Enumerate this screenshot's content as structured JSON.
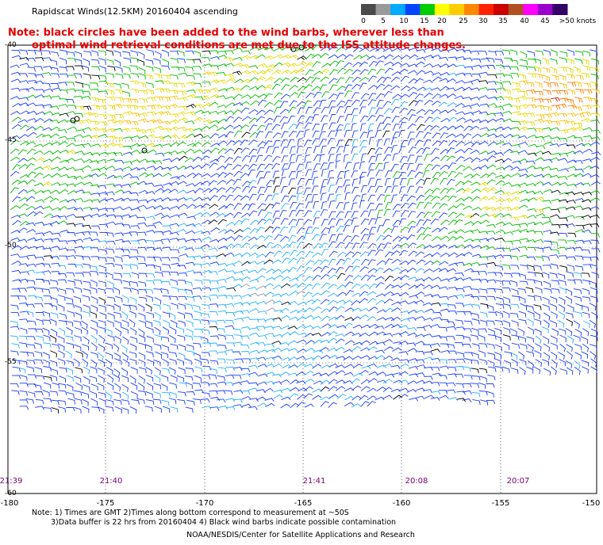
{
  "title": "Rapidscat Winds(12.5KM) 20160404 ascending",
  "note_line1": "Note: black circles have been added to the wind barbs, wherever less than",
  "note_line2": "optimal wind retrieval conditions are met due to the ISS attitude changes.",
  "legend": {
    "labels": [
      "0",
      "5",
      "10",
      "15",
      "20",
      "25",
      "30",
      "35",
      "40",
      "45",
      ">50 knots"
    ],
    "colors": [
      "#4a4a4a",
      "#9a9a9a",
      "#00aaff",
      "#0044ff",
      "#00cc00",
      "#ffff00",
      "#ffcc00",
      "#ff8800",
      "#ff2200",
      "#cc0000",
      "#b05020",
      "#ff00ff",
      "#9900cc",
      "#330066"
    ]
  },
  "lat_labels": [
    "-40",
    "-45",
    "-50",
    "-55",
    "-60"
  ],
  "lon_labels": [
    "-180",
    "-175",
    "-170",
    "-165",
    "-160",
    "-155",
    "-150"
  ],
  "time_labels": [
    "21:39",
    "21:40",
    "21:41",
    "20:08",
    "20:07"
  ],
  "footer_line1": "Note: 1) Times are GMT 2)Times along bottom correspond to measurement at ~50S",
  "footer_line2": "3)Data buffer is 22 hrs from 20160404 4) Black wind barbs indicate possible contamination",
  "footer_line3": "NOAA/NESDIS/Center for Satellite Applications and Research",
  "map": {
    "lon_range": [
      -180,
      -150
    ],
    "lat_range": [
      -60,
      -40
    ],
    "grid": "dotted"
  }
}
